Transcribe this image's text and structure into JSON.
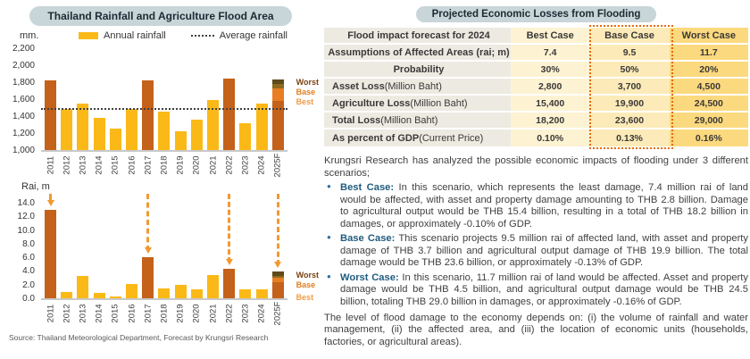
{
  "palette": {
    "yellow": "#FBB917",
    "dark_orange": "#C4611A",
    "orange": "#E87E23",
    "olive": "#8C6A1E",
    "brown": "#5E4A1A",
    "arrow": "#F19A31",
    "pill_bg": "#C8D5D9",
    "accent_blue": "#1F5C7E",
    "label_worst": "#7A4210",
    "label_base": "#E07E20",
    "label_best": "#F19B45",
    "table_label_bg": "#EDEAE2",
    "table_best_bg": "#FDF3D2",
    "table_base_bg": "#FCEBB8",
    "table_worst_bg": "#FBD97E",
    "table_dotted": "#E36C09"
  },
  "left_panel": {
    "title": "Thailand Rainfall and Agriculture Flood Area",
    "unit_top": "mm.",
    "unit_bottom": "Rai, m",
    "legend": {
      "annual": "Annual rainfall",
      "average": "Average rainfall"
    },
    "scenario_labels": {
      "worst": "Worst",
      "base": "Base",
      "best": "Best"
    },
    "source": "Source: Thailand Meteorological Department, Forecast by Krungsri Research"
  },
  "chart_data": [
    {
      "type": "bar",
      "title": "Annual rainfall",
      "ylabel": "mm.",
      "ylim": [
        1000,
        2200
      ],
      "yticks": [
        "2,200",
        "2,000",
        "1,800",
        "1,600",
        "1,400",
        "1,200",
        "1,000"
      ],
      "average_line": 1475,
      "legend": [
        "Annual rainfall",
        "Average rainfall"
      ],
      "highlight_years": [
        "2011",
        "2017",
        "2022"
      ],
      "bars": [
        {
          "label": "2011",
          "value": 1820,
          "color": "dark_orange"
        },
        {
          "label": "2012",
          "value": 1480,
          "color": "yellow"
        },
        {
          "label": "2013",
          "value": 1550,
          "color": "yellow"
        },
        {
          "label": "2014",
          "value": 1375,
          "color": "yellow"
        },
        {
          "label": "2015",
          "value": 1250,
          "color": "yellow"
        },
        {
          "label": "2016",
          "value": 1480,
          "color": "yellow"
        },
        {
          "label": "2017",
          "value": 1825,
          "color": "dark_orange"
        },
        {
          "label": "2018",
          "value": 1450,
          "color": "yellow"
        },
        {
          "label": "2019",
          "value": 1220,
          "color": "yellow"
        },
        {
          "label": "2020",
          "value": 1355,
          "color": "yellow"
        },
        {
          "label": "2021",
          "value": 1590,
          "color": "yellow"
        },
        {
          "label": "2022",
          "value": 1845,
          "color": "dark_orange"
        },
        {
          "label": "2023",
          "value": 1320,
          "color": "yellow"
        },
        {
          "label": "2024",
          "value": 1550,
          "color": "yellow"
        },
        {
          "label": "2025F",
          "segments": [
            {
              "name": "actual",
              "to": 1580,
              "color": "dark_orange"
            },
            {
              "name": "best",
              "to": 1730,
              "color": "orange"
            },
            {
              "name": "base",
              "to": 1782,
              "color": "olive"
            },
            {
              "name": "worst",
              "to": 1835,
              "color": "brown"
            }
          ]
        }
      ]
    },
    {
      "type": "bar",
      "title": "Agriculture flood area",
      "ylabel": "Rai, m",
      "ylim": [
        0,
        14
      ],
      "yticks": [
        "14.0",
        "12.0",
        "10.0",
        "8.0",
        "6.0",
        "4.0",
        "2.0",
        "0.0"
      ],
      "arrows": [
        "2011",
        "2017",
        "2022",
        "2025F"
      ],
      "bars": [
        {
          "label": "2011",
          "value": 13.0,
          "color": "dark_orange"
        },
        {
          "label": "2012",
          "value": 0.9,
          "color": "yellow"
        },
        {
          "label": "2013",
          "value": 3.3,
          "color": "yellow"
        },
        {
          "label": "2014",
          "value": 0.8,
          "color": "yellow"
        },
        {
          "label": "2015",
          "value": 0.2,
          "color": "yellow"
        },
        {
          "label": "2016",
          "value": 2.1,
          "color": "yellow"
        },
        {
          "label": "2017",
          "value": 6.0,
          "color": "dark_orange"
        },
        {
          "label": "2018",
          "value": 1.4,
          "color": "yellow"
        },
        {
          "label": "2019",
          "value": 2.0,
          "color": "yellow"
        },
        {
          "label": "2020",
          "value": 1.35,
          "color": "yellow"
        },
        {
          "label": "2021",
          "value": 3.4,
          "color": "yellow"
        },
        {
          "label": "2022",
          "value": 4.3,
          "color": "dark_orange"
        },
        {
          "label": "2023",
          "value": 1.3,
          "color": "yellow"
        },
        {
          "label": "2024",
          "value": 1.25,
          "color": "yellow"
        },
        {
          "label": "2025F",
          "segments": [
            {
              "name": "best",
              "to": 2.4,
              "color": "dark_orange"
            },
            {
              "name": "base",
              "to": 3.0,
              "color": "orange"
            },
            {
              "name": "base2",
              "to": 3.3,
              "color": "olive"
            },
            {
              "name": "worst",
              "to": 3.9,
              "color": "brown"
            }
          ]
        }
      ]
    }
  ],
  "right_panel": {
    "title": "Projected Economic Losses from Flooding",
    "table": {
      "col_headers": [
        "Flood impact forecast for 2024",
        "Best Case",
        "Base Case",
        "Worst Case"
      ],
      "rows": [
        {
          "label": "Assumptions of Affected Areas (rai; m)",
          "center": true,
          "values": [
            "7.4",
            "9.5",
            "11.7"
          ]
        },
        {
          "label": "Probability",
          "center": true,
          "values": [
            "30%",
            "50%",
            "20%"
          ]
        },
        {
          "label": "Asset Loss",
          "label_note": " (Million Baht)",
          "values": [
            "2,800",
            "3,700",
            "4,500"
          ]
        },
        {
          "label": "Agriculture Loss",
          "label_note": " (Million Baht)",
          "values": [
            "15,400",
            "19,900",
            "24,500"
          ]
        },
        {
          "label": "Total Loss",
          "label_note": " (Million Baht)",
          "values": [
            "18,200",
            "23,600",
            "29,000"
          ]
        },
        {
          "label": "As percent of GDP",
          "label_note": " (Current Price)",
          "values": [
            "0.10%",
            "0.13%",
            "0.16%"
          ]
        }
      ]
    },
    "intro": "Krungsri Research has analyzed the possible economic impacts of flooding under 3 different scenarios;",
    "bullets": [
      {
        "lead": "Best Case:",
        "text": "In this scenario, which represents the least damage, 7.4 million rai of land would be affected, with asset and property damage amounting to THB 2.8 billion. Damage to agricultural output would be THB 15.4 billion, resulting in a total of THB 18.2 billion in damages, or approximately -0.10% of GDP."
      },
      {
        "lead": "Base Case:",
        "text": "This scenario projects 9.5 million rai of affected land, with asset and property damage of THB 3.7 billion and agricultural output damage of THB 19.9 billion. The total damage would be THB 23.6 billion, or approximately -0.13% of GDP."
      },
      {
        "lead": "Worst Case:",
        "text": "In this scenario, 11.7 million rai of land would be affected. Asset and property damage would be THB 4.5 billion, and agricultural output damage would be THB 24.5 billion, totaling THB 29.0 billion in damages, or approximately -0.16% of GDP."
      }
    ],
    "closing": "The level of flood damage to the economy depends on: (i) the volume of rainfall and water management, (ii) the affected area, and (iii) the location of economic units (households, factories, or agricultural areas)."
  }
}
